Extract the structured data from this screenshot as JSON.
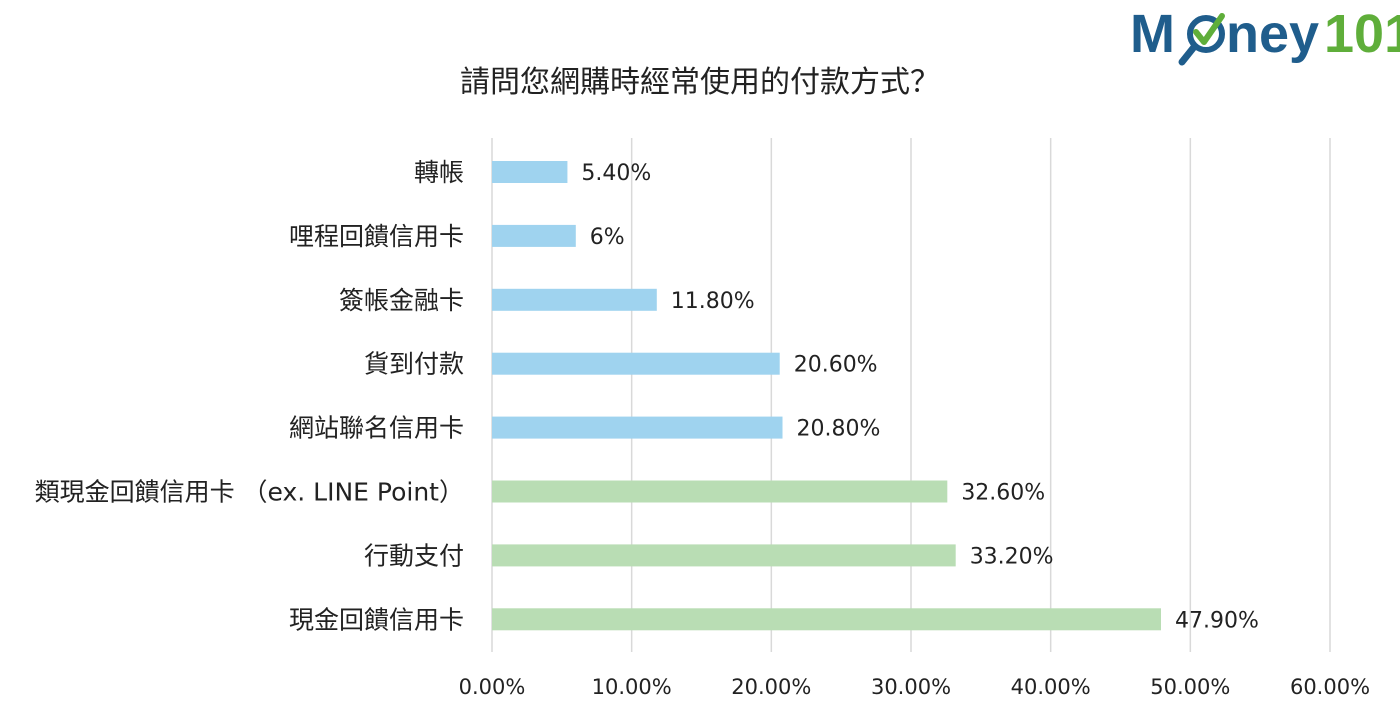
{
  "logo": {
    "prefix": "M",
    "mid": "ney",
    "suffix": "101",
    "color_primary": "#1f5d8c",
    "color_accent": "#5fae3a",
    "icon": "magnifier-check-icon"
  },
  "chart_data": {
    "type": "bar",
    "orientation": "horizontal",
    "title": "請問您網購時經常使用的付款方式？",
    "categories": [
      "轉帳",
      "哩程回饋信用卡",
      "簽帳金融卡",
      "貨到付款",
      "網站聯名信用卡",
      "類現金回饋信用卡 （ex. LINE Point）",
      "行動支付",
      "現金回饋信用卡"
    ],
    "values": [
      5.4,
      6,
      11.8,
      20.6,
      20.8,
      32.6,
      33.2,
      47.9
    ],
    "value_labels": [
      "5.40%",
      "6%",
      "11.80%",
      "20.60%",
      "20.80%",
      "32.60%",
      "33.20%",
      "47.90%"
    ],
    "bar_colors": [
      "#9fd3ef",
      "#9fd3ef",
      "#9fd3ef",
      "#9fd3ef",
      "#9fd3ef",
      "#b9ddb4",
      "#b9ddb4",
      "#b9ddb4"
    ],
    "xlim": [
      0,
      60
    ],
    "xticks": [
      "0.00%",
      "10.00%",
      "20.00%",
      "30.00%",
      "40.00%",
      "50.00%",
      "60.00%"
    ],
    "xlabel": "",
    "ylabel": "",
    "grid": "vertical gridlines",
    "gridline_color": "#d9d9d9",
    "legend": "none"
  }
}
